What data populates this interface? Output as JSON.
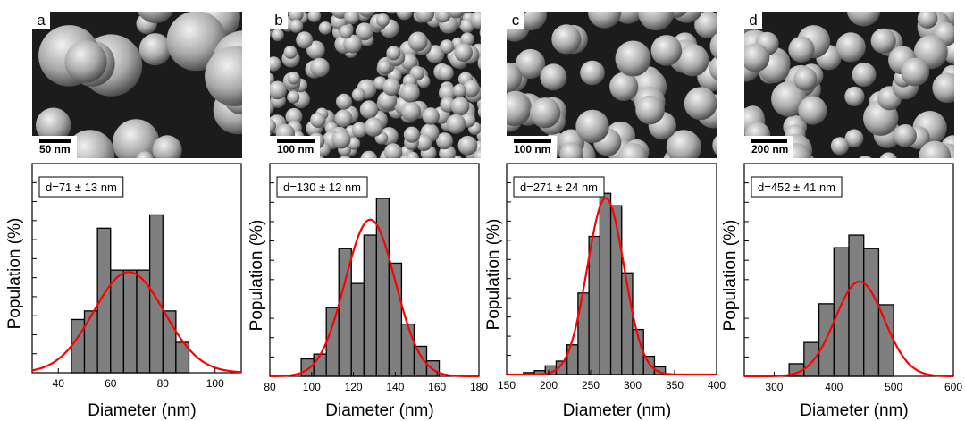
{
  "chart_data": [
    {
      "type": "bar",
      "panel_label": "a",
      "scale_bar": "50 nm",
      "annotation": "d=71 ± 13 nm",
      "xlabel": "Diameter (nm)",
      "ylabel": "Population (%)",
      "xlim": [
        30,
        110
      ],
      "ylim": [
        0,
        22
      ],
      "xticks": [
        40,
        60,
        80,
        100
      ],
      "bin_edges": [
        45,
        50,
        55,
        60,
        65,
        70,
        75,
        80,
        85,
        90
      ],
      "values": [
        5.6,
        6.5,
        15.2,
        10.8,
        10.8,
        10.8,
        16.6,
        6.5,
        3.2
      ],
      "fit": {
        "mean": 67,
        "sd": 13.5,
        "peak": 10.6
      },
      "colors": {
        "bar": "#7f7f7f",
        "fit": "#ff0000"
      }
    },
    {
      "type": "bar",
      "panel_label": "b",
      "scale_bar": "100 nm",
      "annotation": "d=130 ± 12 nm",
      "xlabel": "Diameter (nm)",
      "ylabel": "Population (%)",
      "xlim": [
        80,
        180
      ],
      "ylim": [
        0,
        22
      ],
      "xticks": [
        80,
        100,
        120,
        140,
        160,
        180
      ],
      "bin_edges": [
        95,
        101,
        107,
        113,
        119,
        125,
        131,
        137,
        143,
        149,
        155,
        161
      ],
      "values": [
        1.8,
        2.3,
        7.1,
        13.2,
        9.6,
        14.6,
        18.4,
        11.7,
        5.4,
        3.1,
        1.6
      ],
      "fit": {
        "mean": 128,
        "sd": 12,
        "peak": 16.2
      },
      "colors": {
        "bar": "#7f7f7f",
        "fit": "#ff0000"
      }
    },
    {
      "type": "bar",
      "panel_label": "c",
      "scale_bar": "100 nm",
      "annotation": "d=271 ± 24 nm",
      "xlabel": "Diameter (nm)",
      "ylabel": "Population (%)",
      "xlim": [
        150,
        400
      ],
      "ylim": [
        0,
        22
      ],
      "xticks": [
        150,
        200,
        250,
        300,
        350,
        400
      ],
      "bin_edges": [
        170,
        183,
        196,
        209,
        222,
        235,
        248,
        261,
        274,
        287,
        300,
        313,
        326,
        339
      ],
      "values": [
        0.2,
        0.4,
        0.9,
        1.4,
        3.1,
        8.5,
        14.4,
        18.9,
        17.6,
        10.6,
        4.7,
        1.9,
        0.8
      ],
      "fit": {
        "mean": 268,
        "sd": 22,
        "peak": 18.4
      },
      "colors": {
        "bar": "#7f7f7f",
        "fit": "#ff0000"
      }
    },
    {
      "type": "bar",
      "panel_label": "d",
      "scale_bar": "200 nm",
      "annotation": "d=452 ± 41 nm",
      "xlabel": "Diameter (nm)",
      "ylabel": "Population (%)",
      "xlim": [
        250,
        600
      ],
      "ylim": [
        0,
        22
      ],
      "xticks": [
        300,
        400,
        500,
        600
      ],
      "bin_edges": [
        325,
        350,
        375,
        400,
        425,
        450,
        475,
        500
      ],
      "values": [
        1.3,
        3.5,
        7.5,
        13.3,
        14.6,
        13.2,
        7.4
      ],
      "fit": {
        "mean": 443,
        "sd": 41,
        "peak": 9.8
      },
      "colors": {
        "bar": "#7f7f7f",
        "fit": "#ff0000"
      }
    }
  ]
}
